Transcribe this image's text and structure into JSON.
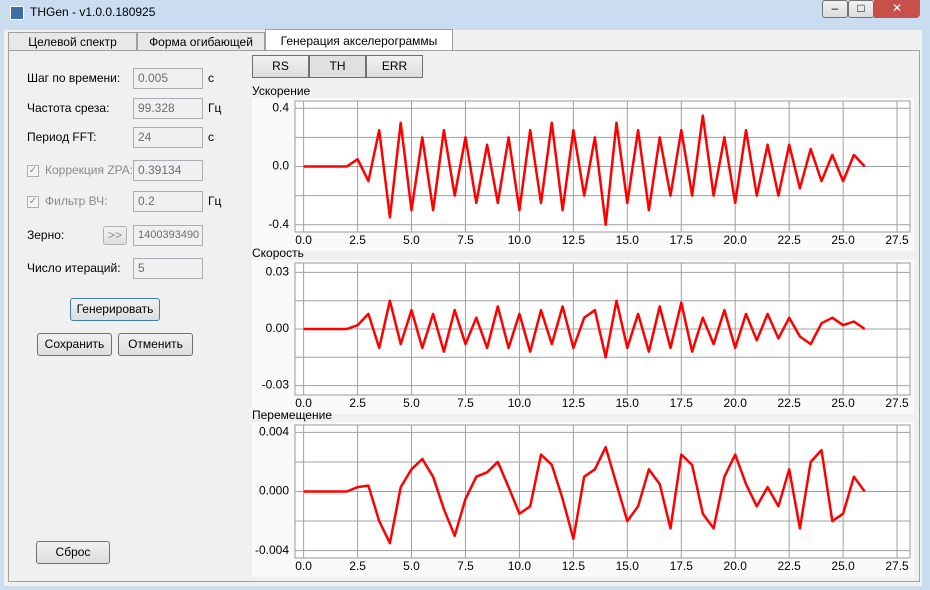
{
  "window": {
    "title": "THGen - v1.0.0.180925"
  },
  "tabs": [
    "Целевой спектр",
    "Форма огибающей",
    "Генерация акселерограммы"
  ],
  "view_buttons": [
    "RS",
    "TH",
    "ERR"
  ],
  "form": {
    "time_step": {
      "label": "Шаг по времени:",
      "value": "0.005",
      "unit": "с"
    },
    "cutoff": {
      "label": "Частота среза:",
      "value": "99.328",
      "unit": "Гц"
    },
    "fft_period": {
      "label": "Период FFT:",
      "value": "24",
      "unit": "с"
    },
    "zpa": {
      "label": "Коррекция ZPA:",
      "value": "0.39134"
    },
    "hp_filter": {
      "label": "Фильтр ВЧ:",
      "value": "0.2",
      "unit": "Гц"
    },
    "seed": {
      "label": "Зерно:",
      "button": ">>",
      "value": "1400393490"
    },
    "iterations": {
      "label": "Число итераций:",
      "value": "5"
    },
    "generate": "Генерировать",
    "save": "Сохранить",
    "cancel": "Отменить",
    "reset": "Сброс"
  },
  "chart_data": [
    {
      "type": "line",
      "title": "Ускорение",
      "color": "#ff0000",
      "x": [
        0,
        0.5,
        1,
        1.5,
        2,
        2.5,
        3,
        3.5,
        4,
        4.5,
        5,
        5.5,
        6,
        6.5,
        7,
        7.5,
        8,
        8.5,
        9,
        9.5,
        10,
        10.5,
        11,
        11.5,
        12,
        12.5,
        13,
        13.5,
        14,
        14.5,
        15,
        15.5,
        16,
        16.5,
        17,
        17.5,
        18,
        18.5,
        19,
        19.5,
        20,
        20.5,
        21,
        21.5,
        22,
        22.5,
        23,
        23.5,
        24,
        24.5,
        25,
        25.5,
        26
      ],
      "values": [
        0,
        0,
        0,
        0,
        0,
        0.05,
        -0.1,
        0.25,
        -0.35,
        0.3,
        -0.3,
        0.2,
        -0.3,
        0.25,
        -0.2,
        0.2,
        -0.25,
        0.15,
        -0.25,
        0.2,
        -0.3,
        0.25,
        -0.25,
        0.3,
        -0.3,
        0.25,
        -0.2,
        0.2,
        -0.4,
        0.3,
        -0.25,
        0.25,
        -0.3,
        0.2,
        -0.2,
        0.25,
        -0.2,
        0.35,
        -0.2,
        0.2,
        -0.25,
        0.25,
        -0.2,
        0.15,
        -0.2,
        0.15,
        -0.15,
        0.12,
        -0.1,
        0.08,
        -0.1,
        0.08,
        0
      ],
      "xlim": [
        -0.4,
        28.1
      ],
      "xticks": [
        {
          "value": 0,
          "label": "0.0"
        },
        2.5,
        {
          "value": 5,
          "label": "5.0"
        },
        7.5,
        {
          "value": 10,
          "label": "10.0"
        },
        12.5,
        {
          "value": 15,
          "label": "15.0"
        },
        17.5,
        {
          "value": 20,
          "label": "20.0"
        },
        22.5,
        {
          "value": 25,
          "label": "25.0"
        },
        27.5
      ],
      "ylim": [
        -0.45,
        0.45
      ],
      "yticks": [
        -0.4,
        {
          "value": 0,
          "label": "0.0"
        },
        0.4
      ],
      "yminor": [
        -0.2,
        0.2
      ],
      "grid": true
    },
    {
      "type": "line",
      "title": "Скорость",
      "color": "#ff0000",
      "x": [
        0,
        0.5,
        1,
        1.5,
        2,
        2.5,
        3,
        3.5,
        4,
        4.5,
        5,
        5.5,
        6,
        6.5,
        7,
        7.5,
        8,
        8.5,
        9,
        9.5,
        10,
        10.5,
        11,
        11.5,
        12,
        12.5,
        13,
        13.5,
        14,
        14.5,
        15,
        15.5,
        16,
        16.5,
        17,
        17.5,
        18,
        18.5,
        19,
        19.5,
        20,
        20.5,
        21,
        21.5,
        22,
        22.5,
        23,
        23.5,
        24,
        24.5,
        25,
        25.5,
        26
      ],
      "values": [
        0,
        0,
        0,
        0,
        0,
        0.002,
        0.008,
        -0.01,
        0.015,
        -0.008,
        0.01,
        -0.01,
        0.008,
        -0.012,
        0.01,
        -0.008,
        0.006,
        -0.01,
        0.012,
        -0.01,
        0.008,
        -0.012,
        0.01,
        -0.008,
        0.012,
        -0.01,
        0.006,
        0.01,
        -0.015,
        0.015,
        -0.01,
        0.008,
        -0.012,
        0.012,
        -0.01,
        0.014,
        -0.012,
        0.006,
        -0.008,
        0.01,
        -0.01,
        0.008,
        -0.006,
        0.008,
        -0.005,
        0.006,
        -0.004,
        -0.008,
        0.003,
        0.006,
        0.002,
        0.004,
        0
      ],
      "xlim": [
        -0.4,
        28.1
      ],
      "xticks": [
        {
          "value": 0,
          "label": "0.0"
        },
        2.5,
        {
          "value": 5,
          "label": "5.0"
        },
        7.5,
        {
          "value": 10,
          "label": "10.0"
        },
        12.5,
        {
          "value": 15,
          "label": "15.0"
        },
        17.5,
        {
          "value": 20,
          "label": "20.0"
        },
        22.5,
        {
          "value": 25,
          "label": "25.0"
        },
        27.5
      ],
      "ylim": [
        -0.035,
        0.035
      ],
      "yticks": [
        -0.03,
        {
          "value": 0,
          "label": "0.00"
        },
        0.03
      ],
      "yminor": [
        -0.015,
        0.015
      ],
      "grid": true
    },
    {
      "type": "line",
      "title": "Перемещение",
      "color": "#ff0000",
      "x": [
        0,
        0.5,
        1,
        1.5,
        2,
        2.5,
        3,
        3.5,
        4,
        4.5,
        5,
        5.5,
        6,
        6.5,
        7,
        7.5,
        8,
        8.5,
        9,
        9.5,
        10,
        10.5,
        11,
        11.5,
        12,
        12.5,
        13,
        13.5,
        14,
        14.5,
        15,
        15.5,
        16,
        16.5,
        17,
        17.5,
        18,
        18.5,
        19,
        19.5,
        20,
        20.5,
        21,
        21.5,
        22,
        22.5,
        23,
        23.5,
        24,
        24.5,
        25,
        25.5,
        26
      ],
      "values": [
        0,
        0,
        0,
        0,
        0,
        0.0003,
        0.0004,
        -0.002,
        -0.0035,
        0.0003,
        0.0015,
        0.0022,
        0.001,
        -0.0012,
        -0.003,
        -0.0005,
        0.001,
        0.0013,
        0.002,
        0.0003,
        -0.0015,
        -0.001,
        0.0025,
        0.0018,
        -0.0005,
        -0.0032,
        0.001,
        0.0015,
        0.003,
        0.0005,
        -0.002,
        -0.001,
        0.0015,
        0.0005,
        -0.0025,
        0.0025,
        0.0018,
        -0.0015,
        -0.0025,
        0.001,
        0.0025,
        0.0005,
        -0.001,
        0.0003,
        -0.001,
        0.0015,
        -0.0025,
        0.002,
        0.0028,
        -0.002,
        -0.0015,
        0.001,
        0
      ],
      "xlim": [
        -0.4,
        28.1
      ],
      "xticks": [
        {
          "value": 0,
          "label": "0.0"
        },
        2.5,
        {
          "value": 5,
          "label": "5.0"
        },
        7.5,
        {
          "value": 10,
          "label": "10.0"
        },
        12.5,
        {
          "value": 15,
          "label": "15.0"
        },
        17.5,
        {
          "value": 20,
          "label": "20.0"
        },
        22.5,
        {
          "value": 25,
          "label": "25.0"
        },
        27.5
      ],
      "ylim": [
        -0.0045,
        0.0045
      ],
      "yticks": [
        -0.004,
        {
          "value": 0,
          "label": "0.000"
        },
        0.004
      ],
      "yminor": [
        -0.002,
        0.002
      ],
      "grid": true
    }
  ]
}
